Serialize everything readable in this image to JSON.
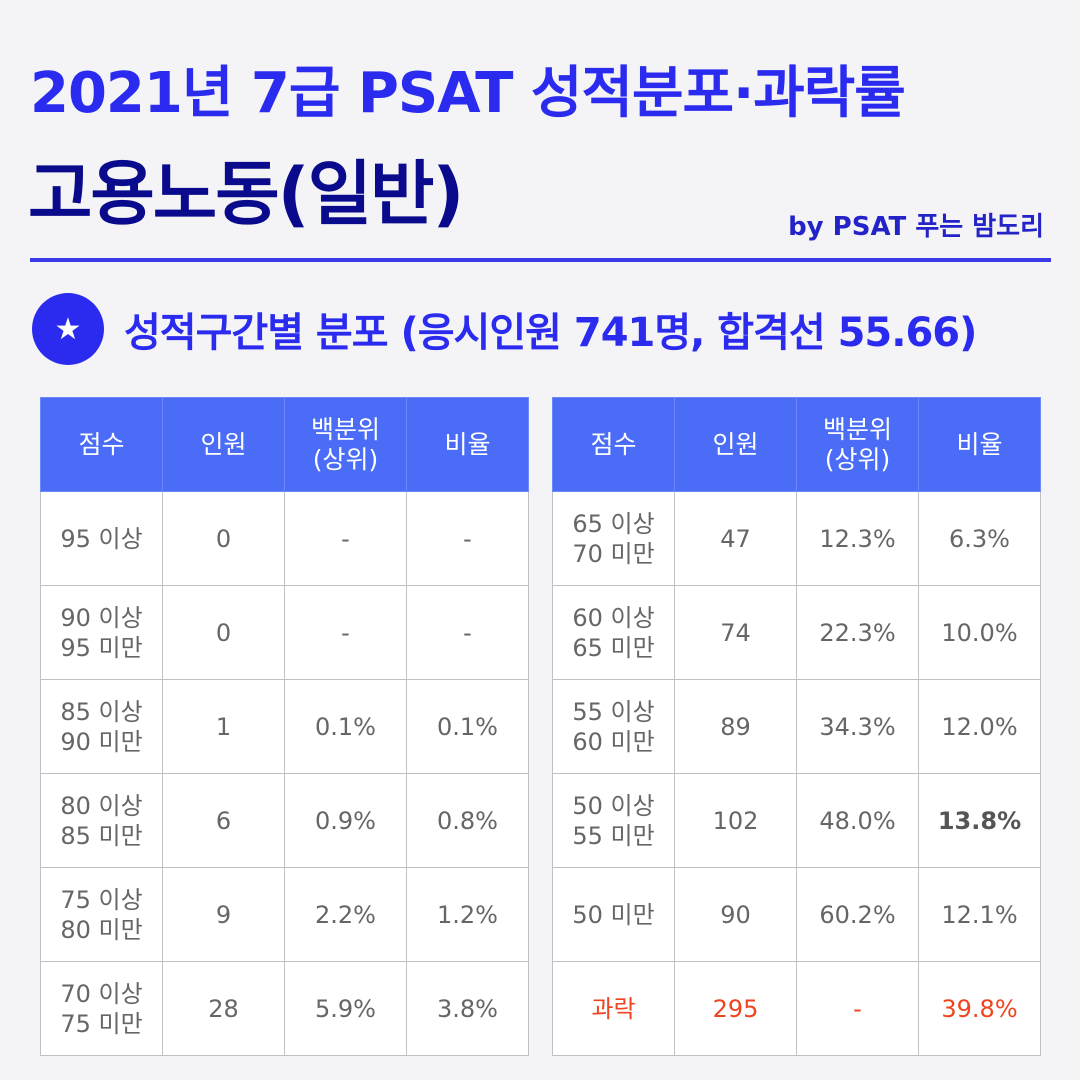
{
  "header": {
    "title_line1": "2021년 7급 PSAT 성적분포·과락률",
    "title_line2": "고용노동(일반)",
    "byline": "by PSAT 푸는 밤도리"
  },
  "section": {
    "badge_icon": "star-icon",
    "badge_glyph": "★",
    "title": "성적구간별 분포 (응시인원 741명, 합격선 55.66)"
  },
  "table": {
    "headers": {
      "score": "점수",
      "count": "인원",
      "percentile_l1": "백분위",
      "percentile_l2": "(상위)",
      "ratio": "비율"
    },
    "left_rows": [
      {
        "score_l1": "95 이상",
        "score_l2": "",
        "count": "0",
        "percentile": "-",
        "ratio": "-"
      },
      {
        "score_l1": "90 이상",
        "score_l2": "95 미만",
        "count": "0",
        "percentile": "-",
        "ratio": "-"
      },
      {
        "score_l1": "85 이상",
        "score_l2": "90 미만",
        "count": "1",
        "percentile": "0.1%",
        "ratio": "0.1%"
      },
      {
        "score_l1": "80 이상",
        "score_l2": "85 미만",
        "count": "6",
        "percentile": "0.9%",
        "ratio": "0.8%"
      },
      {
        "score_l1": "75 이상",
        "score_l2": "80 미만",
        "count": "9",
        "percentile": "2.2%",
        "ratio": "1.2%"
      },
      {
        "score_l1": "70 이상",
        "score_l2": "75 미만",
        "count": "28",
        "percentile": "5.9%",
        "ratio": "3.8%"
      }
    ],
    "right_rows": [
      {
        "score_l1": "65 이상",
        "score_l2": "70 미만",
        "count": "47",
        "percentile": "12.3%",
        "ratio": "6.3%"
      },
      {
        "score_l1": "60 이상",
        "score_l2": "65 미만",
        "count": "74",
        "percentile": "22.3%",
        "ratio": "10.0%"
      },
      {
        "score_l1": "55 이상",
        "score_l2": "60 미만",
        "count": "89",
        "percentile": "34.3%",
        "ratio": "12.0%"
      },
      {
        "score_l1": "50 이상",
        "score_l2": "55 미만",
        "count": "102",
        "percentile": "48.0%",
        "ratio": "13.8%"
      },
      {
        "score_l1": "50 미만",
        "score_l2": "",
        "count": "90",
        "percentile": "60.2%",
        "ratio": "12.1%"
      },
      {
        "score_l1": "과락",
        "score_l2": "",
        "count": "295",
        "percentile": "-",
        "ratio": "39.8%"
      }
    ],
    "highlight_color": "#ee4420",
    "header_color": "#4a6cf7"
  }
}
